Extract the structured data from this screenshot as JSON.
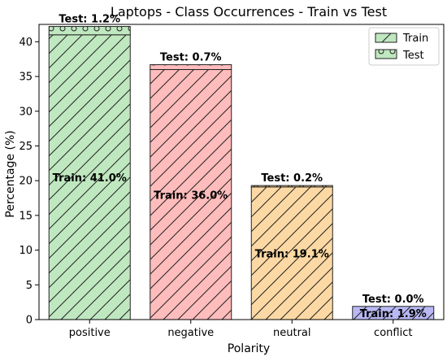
{
  "chart_data": {
    "type": "bar",
    "stacked": true,
    "title": "Laptops - Class Occurrences - Train vs Test",
    "xlabel": "Polarity",
    "ylabel": "Percentage (%)",
    "ylim": [
      0,
      42.5
    ],
    "yticks": [
      0,
      5,
      10,
      15,
      20,
      25,
      30,
      35,
      40
    ],
    "categories": [
      "positive",
      "negative",
      "neutral",
      "conflict"
    ],
    "colors": [
      "#c0e8c0",
      "#ffbcbc",
      "#fcd9a4",
      "#b8b8f4"
    ],
    "series": [
      {
        "name": "Train",
        "values": [
          41.0,
          36.0,
          19.1,
          1.9
        ],
        "labels": [
          "Train: 41.0%",
          "Train: 36.0%",
          "Train: 19.1%",
          "Train: 1.9%"
        ]
      },
      {
        "name": "Test",
        "values": [
          1.2,
          0.7,
          0.2,
          0.0
        ],
        "labels": [
          "Test: 1.2%",
          "Test: 0.7%",
          "Test: 0.2%",
          "Test: 0.0%"
        ]
      }
    ],
    "legend_position": "top-right",
    "grid": false
  }
}
